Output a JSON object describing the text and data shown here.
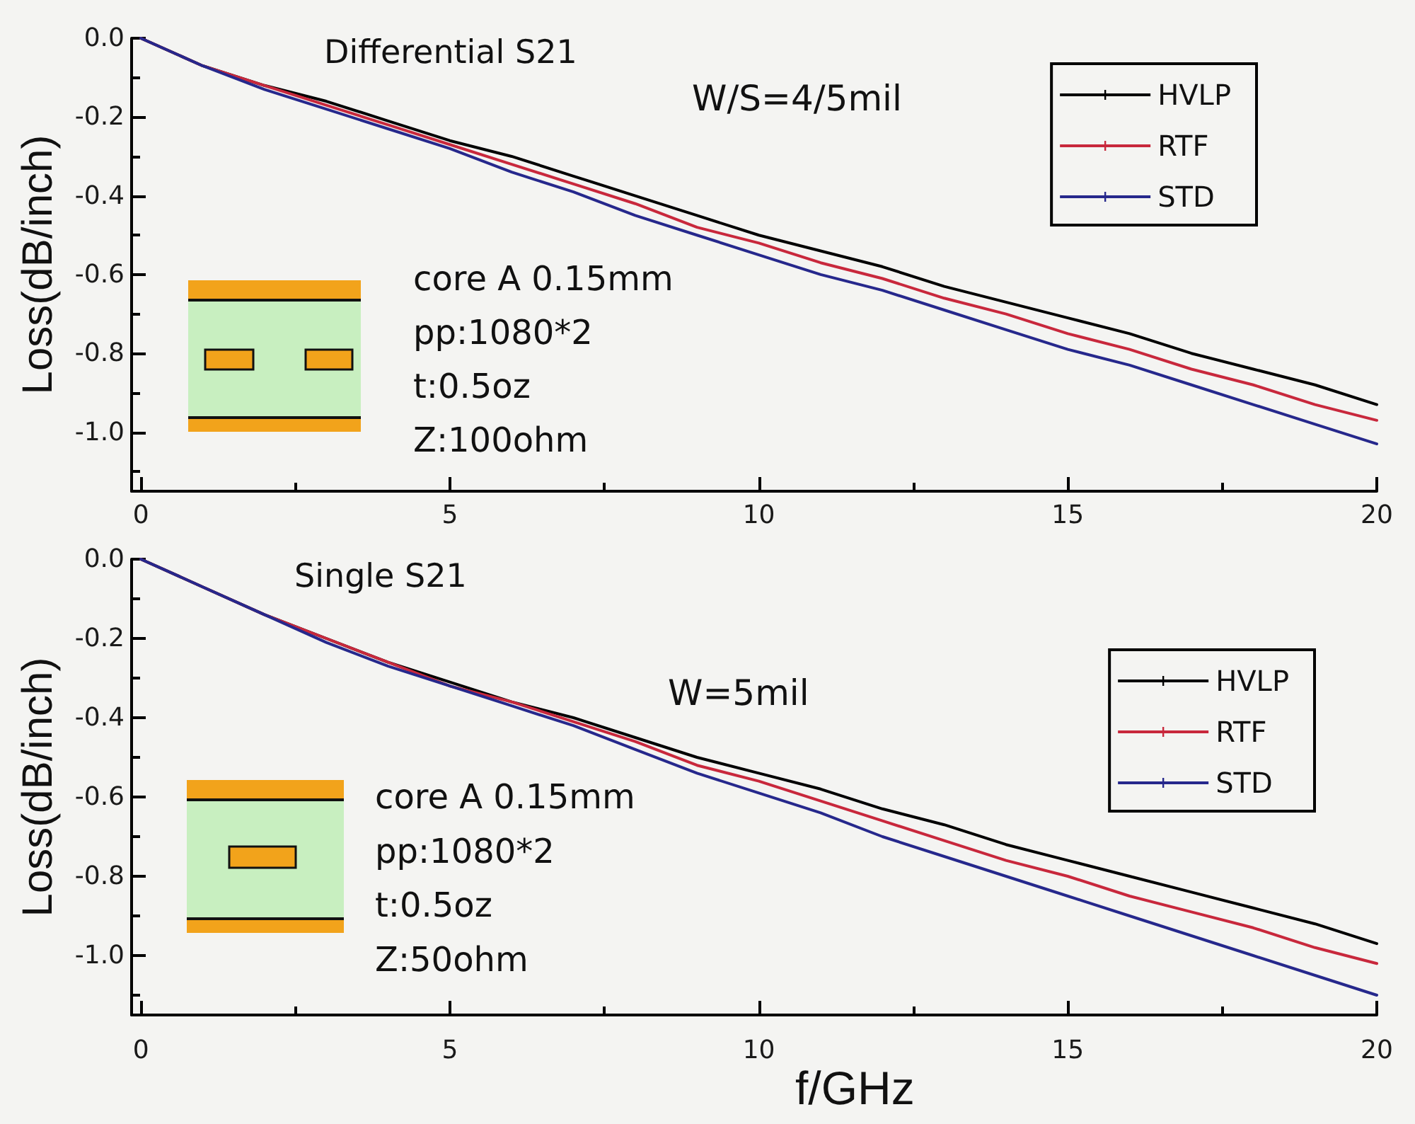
{
  "chart_data": [
    {
      "type": "line",
      "title": "Differential S21",
      "ylabel": "Loss(dB/inch)",
      "annotations": [
        "W/S=4/5mil",
        "core A 0.15mm",
        "pp:1080*2",
        "t:0.5oz",
        "Z:100ohm"
      ],
      "x": [
        0,
        1,
        2,
        3,
        4,
        5,
        6,
        7,
        8,
        9,
        10,
        11,
        12,
        13,
        14,
        15,
        16,
        17,
        18,
        19,
        20
      ],
      "series": [
        {
          "name": "HVLP",
          "color": "#000000",
          "values": [
            0,
            -0.07,
            -0.12,
            -0.16,
            -0.21,
            -0.26,
            -0.3,
            -0.35,
            -0.4,
            -0.45,
            -0.5,
            -0.54,
            -0.58,
            -0.63,
            -0.67,
            -0.71,
            -0.75,
            -0.8,
            -0.84,
            -0.88,
            -0.93
          ]
        },
        {
          "name": "RTF",
          "color": "#c8283c",
          "values": [
            0,
            -0.07,
            -0.12,
            -0.17,
            -0.22,
            -0.27,
            -0.32,
            -0.37,
            -0.42,
            -0.48,
            -0.52,
            -0.57,
            -0.61,
            -0.66,
            -0.7,
            -0.75,
            -0.79,
            -0.84,
            -0.88,
            -0.93,
            -0.97
          ]
        },
        {
          "name": "STD",
          "color": "#26288c",
          "values": [
            0,
            -0.07,
            -0.13,
            -0.18,
            -0.23,
            -0.28,
            -0.34,
            -0.39,
            -0.45,
            -0.5,
            -0.55,
            -0.6,
            -0.64,
            -0.69,
            -0.74,
            -0.79,
            -0.83,
            -0.88,
            -0.93,
            -0.98,
            -1.03
          ]
        }
      ],
      "xlim": [
        -0.15,
        20
      ],
      "xticks": [
        0,
        {
          "value": 2.5,
          "label": null
        },
        5,
        {
          "value": 7.5,
          "label": null
        },
        10,
        {
          "value": 12.5,
          "label": null
        },
        15,
        {
          "value": 17.5,
          "label": null
        },
        20
      ],
      "ylim": [
        -1.15,
        0
      ],
      "yticks": [
        {
          "value": 0,
          "label": "0.0"
        },
        {
          "value": -0.1,
          "label": null
        },
        -0.2,
        {
          "value": -0.3,
          "label": null
        },
        -0.4,
        {
          "value": -0.5,
          "label": null
        },
        -0.6,
        {
          "value": -0.7,
          "label": null
        },
        -0.8,
        {
          "value": -0.9,
          "label": null
        },
        {
          "value": -1,
          "label": "-1.0"
        },
        {
          "value": -1.1,
          "label": null
        }
      ],
      "grid": false,
      "legend": "top right"
    },
    {
      "type": "line",
      "title": "Single S21",
      "xlabel": "f/GHz",
      "ylabel": "Loss(dB/inch)",
      "annotations": [
        "W=5mil",
        "core A 0.15mm",
        "pp:1080*2",
        "t:0.5oz",
        "Z:50ohm"
      ],
      "x": [
        0,
        1,
        2,
        3,
        4,
        5,
        6,
        7,
        8,
        9,
        10,
        11,
        12,
        13,
        14,
        15,
        16,
        17,
        18,
        19,
        20
      ],
      "series": [
        {
          "name": "HVLP",
          "color": "#000000",
          "values": [
            0,
            -0.07,
            -0.14,
            -0.2,
            -0.26,
            -0.31,
            -0.36,
            -0.4,
            -0.45,
            -0.5,
            -0.54,
            -0.58,
            -0.63,
            -0.67,
            -0.72,
            -0.76,
            -0.8,
            -0.84,
            -0.88,
            -0.92,
            -0.97
          ]
        },
        {
          "name": "RTF",
          "color": "#c8283c",
          "values": [
            0,
            -0.07,
            -0.14,
            -0.2,
            -0.26,
            -0.32,
            -0.36,
            -0.41,
            -0.46,
            -0.52,
            -0.56,
            -0.61,
            -0.66,
            -0.71,
            -0.76,
            -0.8,
            -0.85,
            -0.89,
            -0.93,
            -0.98,
            -1.02
          ]
        },
        {
          "name": "STD",
          "color": "#26288c",
          "values": [
            0,
            -0.07,
            -0.14,
            -0.21,
            -0.27,
            -0.32,
            -0.37,
            -0.42,
            -0.48,
            -0.54,
            -0.59,
            -0.64,
            -0.7,
            -0.75,
            -0.8,
            -0.85,
            -0.9,
            -0.95,
            -1.0,
            -1.05,
            -1.1
          ]
        }
      ],
      "xlim": [
        -0.15,
        20
      ],
      "xticks": [
        0,
        {
          "value": 2.5,
          "label": null
        },
        5,
        {
          "value": 7.5,
          "label": null
        },
        10,
        {
          "value": 12.5,
          "label": null
        },
        15,
        {
          "value": 17.5,
          "label": null
        },
        20
      ],
      "ylim": [
        -1.15,
        0
      ],
      "yticks": [
        {
          "value": 0,
          "label": "0.0"
        },
        {
          "value": -0.1,
          "label": null
        },
        -0.2,
        {
          "value": -0.3,
          "label": null
        },
        -0.4,
        {
          "value": -0.5,
          "label": null
        },
        -0.6,
        {
          "value": -0.7,
          "label": null
        },
        -0.8,
        {
          "value": -0.9,
          "label": null
        },
        {
          "value": -1,
          "label": "-1.0"
        },
        {
          "value": -1.1,
          "label": null
        }
      ],
      "grid": false,
      "legend": "right"
    }
  ]
}
